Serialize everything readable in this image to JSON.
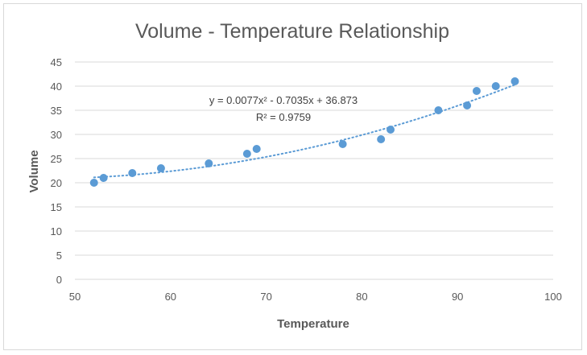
{
  "chart_data": {
    "type": "scatter",
    "title": "Volume - Temperature Relationship",
    "xlabel": "Temperature",
    "ylabel": "Volume",
    "xlim": [
      50,
      100
    ],
    "ylim": [
      0,
      45
    ],
    "xticks": [
      50,
      60,
      70,
      80,
      90,
      100
    ],
    "yticks": [
      0,
      5,
      10,
      15,
      20,
      25,
      30,
      35,
      40,
      45
    ],
    "grid": "horizontal",
    "legend": "none",
    "colors": {
      "marker": "#5b9bd5",
      "trendline": "#5b9bd5",
      "grid": "#d9d9d9",
      "text": "#595959"
    },
    "series": [
      {
        "x": [
          52,
          53,
          56,
          59,
          64,
          68,
          69,
          78,
          82,
          83,
          88,
          91,
          92,
          94,
          96
        ],
        "y": [
          20,
          21,
          22,
          23,
          24,
          26,
          27,
          28,
          29,
          31,
          35,
          36,
          39,
          40,
          41
        ]
      }
    ],
    "trendline": {
      "type": "polynomial",
      "style": "dotted",
      "coefficients": [
        0.0077,
        -0.7035,
        36.873
      ],
      "x_range": [
        52,
        96
      ],
      "equation": "y = 0.0077x² - 0.7035x + 36.873",
      "r_squared": "R² = 0.9759"
    }
  }
}
